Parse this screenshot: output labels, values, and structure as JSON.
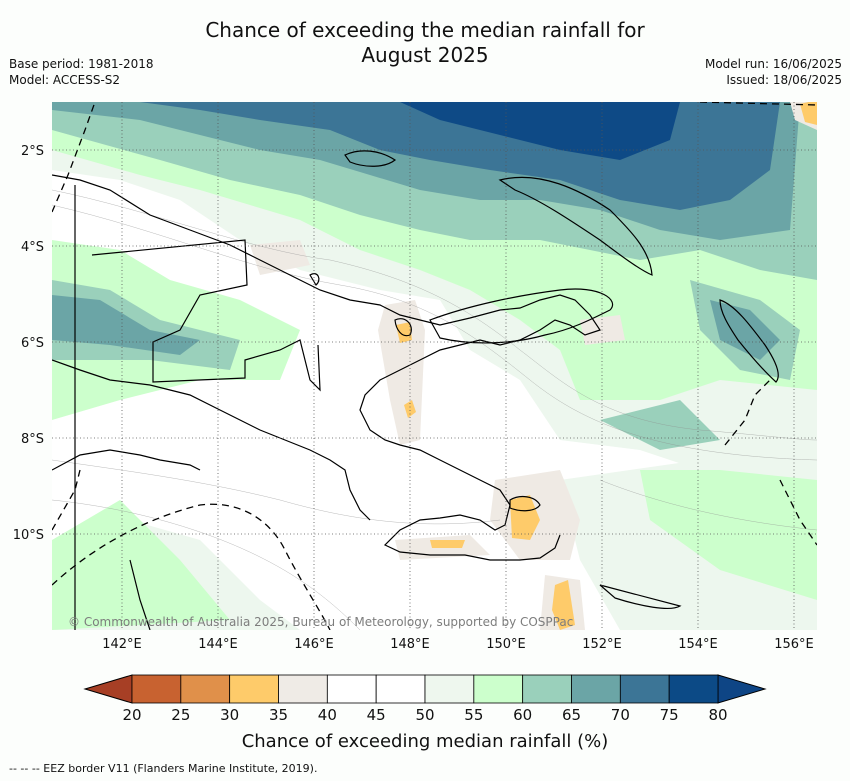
{
  "header": {
    "title_line1": "Chance of exceeding the median rainfall for",
    "title_line2": "August 2025",
    "base_period": "Base period: 1981-2018",
    "model": "Model: ACCESS-S2",
    "model_run": "Model run: 16/06/2025",
    "issued": "Issued: 18/06/2025"
  },
  "map": {
    "lon_ticks": [
      "142°E",
      "144°E",
      "146°E",
      "148°E",
      "150°E",
      "152°E",
      "154°E",
      "156°E"
    ],
    "lat_ticks": [
      "2°S",
      "4°S",
      "6°S",
      "8°S",
      "10°S"
    ],
    "copyright": "© Commonwealth of Australia 2025, Bureau of Meteorology, supported by COSPPac",
    "colors": {
      "water": "#ffffff",
      "lt_green": "#edf7ee",
      "green": "#ccffcc",
      "teal": "#9ad0bb",
      "blue_teal": "#6ba5a6",
      "blue": "#3c7596",
      "dark_blue": "#0e4a86",
      "beige": "#efeae4",
      "orange": "#fecb6a"
    }
  },
  "colorbar": {
    "labels": [
      "20",
      "25",
      "30",
      "35",
      "40",
      "45",
      "50",
      "55",
      "60",
      "65",
      "70",
      "75",
      "80"
    ],
    "colors": [
      "#b34b28",
      "#c86230",
      "#e0904a",
      "#fecb6a",
      "#efebe6",
      "#ffffff",
      "#ffffff",
      "#eef7ee",
      "#ccffcc",
      "#9ad0bb",
      "#6ba5a6",
      "#3c7596",
      "#0c4a86"
    ],
    "under_color": "#a73f25",
    "over_color": "#0e4585",
    "title": "Chance of exceeding median rainfall (%)"
  },
  "footnote": "--  --  -- EEZ border V11 (Flanders Marine Institute, 2019)."
}
